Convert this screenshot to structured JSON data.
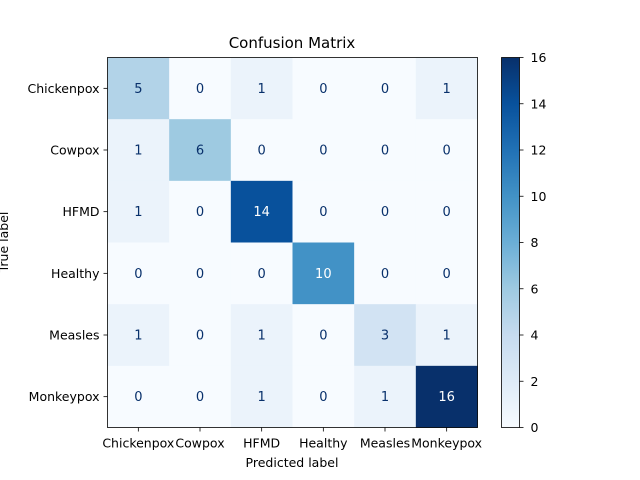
{
  "chart_data": {
    "type": "heatmap",
    "title": "Confusion Matrix",
    "xlabel": "Predicted label",
    "ylabel": "True label",
    "x_labels": [
      "Chickenpox",
      "Cowpox",
      "HFMD",
      "Healthy",
      "Measles",
      "Monkeypox"
    ],
    "y_labels": [
      "Chickenpox",
      "Cowpox",
      "HFMD",
      "Healthy",
      "Measles",
      "Monkeypox"
    ],
    "matrix": [
      [
        5,
        0,
        1,
        0,
        0,
        1
      ],
      [
        1,
        6,
        0,
        0,
        0,
        0
      ],
      [
        1,
        0,
        14,
        0,
        0,
        0
      ],
      [
        0,
        0,
        0,
        10,
        0,
        0
      ],
      [
        1,
        0,
        1,
        0,
        3,
        1
      ],
      [
        0,
        0,
        1,
        0,
        1,
        16
      ]
    ],
    "colormap": "Blues",
    "vmin": 0,
    "vmax": 16,
    "colorbar_ticks": [
      0,
      2,
      4,
      6,
      8,
      10,
      12,
      14,
      16
    ],
    "colors": {
      "cmap_stops": [
        "#f7fbff",
        "#deebf7",
        "#c6dbef",
        "#9ecae1",
        "#6baed6",
        "#4292c6",
        "#2171b5",
        "#08519c",
        "#08306b"
      ],
      "text_dark": "#08306b",
      "text_light": "#ffffff"
    }
  }
}
